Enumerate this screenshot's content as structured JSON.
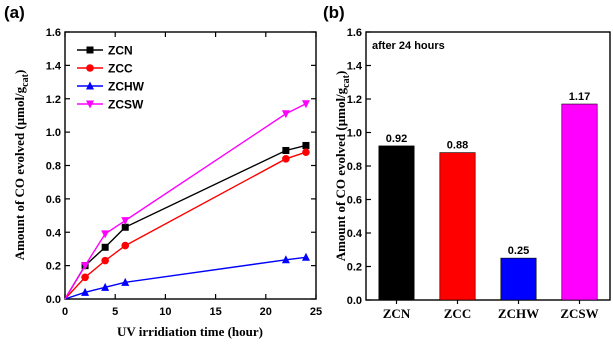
{
  "chart_data": [
    {
      "panel": "(a)",
      "type": "line",
      "xlabel": "UV irridiation time (hour)",
      "ylabel": "Amount of CO evolved (μmol/g",
      "ylabel_sub": "cat",
      "ylabel_end": ")",
      "xlim": [
        0,
        25
      ],
      "ylim": [
        0,
        1.6
      ],
      "xticks": [
        "0",
        "5",
        "10",
        "15",
        "20",
        "25"
      ],
      "yticks": [
        "0.0",
        "0.2",
        "0.4",
        "0.6",
        "0.8",
        "1.0",
        "1.2",
        "1.4",
        "1.6"
      ],
      "legend_position": "top-left",
      "series": [
        {
          "name": "ZCN",
          "color": "#000000",
          "marker": "square",
          "x": [
            0,
            2,
            4,
            6,
            22,
            24
          ],
          "y": [
            0,
            0.2,
            0.31,
            0.43,
            0.89,
            0.92
          ]
        },
        {
          "name": "ZCC",
          "color": "#ff0000",
          "marker": "circle",
          "x": [
            0,
            2,
            4,
            6,
            22,
            24
          ],
          "y": [
            0,
            0.13,
            0.23,
            0.32,
            0.84,
            0.88
          ]
        },
        {
          "name": "ZCHW",
          "color": "#0000ff",
          "marker": "triangle-up",
          "x": [
            0,
            2,
            4,
            6,
            22,
            24
          ],
          "y": [
            0,
            0.04,
            0.07,
            0.1,
            0.235,
            0.25
          ]
        },
        {
          "name": "ZCSW",
          "color": "#ff00ff",
          "marker": "triangle-down",
          "x": [
            0,
            2,
            4,
            6,
            22,
            24
          ],
          "y": [
            0,
            0.2,
            0.39,
            0.47,
            1.11,
            1.17
          ]
        }
      ]
    },
    {
      "panel": "(b)",
      "type": "bar",
      "annotation": "after 24 hours",
      "ylabel": "Amount of CO evolved (μmol/g",
      "ylabel_sub": "cat",
      "ylabel_end": ")",
      "ylim": [
        0,
        1.6
      ],
      "yticks": [
        "0.0",
        "0.2",
        "0.4",
        "0.6",
        "0.8",
        "1.0",
        "1.2",
        "1.4",
        "1.6"
      ],
      "categories": [
        "ZCN",
        "ZCC",
        "ZCHW",
        "ZCSW"
      ],
      "values": [
        0.92,
        0.88,
        0.25,
        1.17
      ],
      "value_labels": [
        "0.92",
        "0.88",
        "0.25",
        "1.17"
      ],
      "colors": [
        "#000000",
        "#ff0000",
        "#0000ff",
        "#ff00ff"
      ]
    }
  ]
}
